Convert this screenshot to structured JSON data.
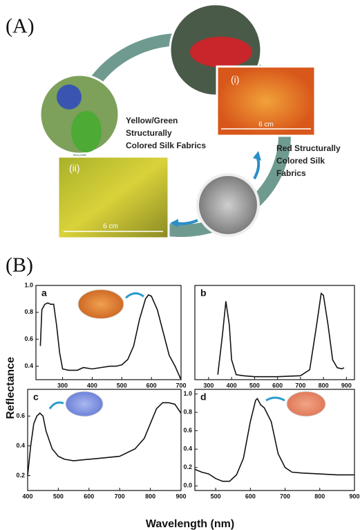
{
  "panel_a": {
    "label": "(A)",
    "fabric_i": "(i)",
    "fabric_ii": "(ii)",
    "scale_i": "6 cm",
    "scale_ii": "6 cm",
    "yellow_green_caption": [
      "Yellow/Green",
      "Structurally",
      "Colored Silk Fabrics"
    ],
    "red_caption": [
      "Red Structurally",
      "Colored Silk",
      "Fabrics"
    ]
  },
  "panel_b": {
    "label": "(B)",
    "y_label": "Reflectance",
    "x_label": "Wavelength (nm)"
  },
  "chart_data": [
    {
      "type": "line",
      "label": "a",
      "color": "#111111",
      "x": [
        225,
        230,
        240,
        250,
        260,
        270,
        280,
        290,
        300,
        320,
        350,
        370,
        400,
        430,
        460,
        480,
        500,
        520,
        540,
        560,
        580,
        590,
        600,
        620,
        640,
        660,
        680,
        690,
        700
      ],
      "values": [
        0.55,
        0.82,
        0.86,
        0.87,
        0.86,
        0.86,
        0.7,
        0.5,
        0.38,
        0.37,
        0.37,
        0.39,
        0.38,
        0.39,
        0.4,
        0.4,
        0.41,
        0.45,
        0.55,
        0.75,
        0.9,
        0.93,
        0.92,
        0.82,
        0.65,
        0.48,
        0.4,
        0.35,
        0.3
      ],
      "xlim": [
        210,
        700
      ],
      "ylim": [
        0.3,
        1.0
      ],
      "xticks": [
        300,
        400,
        500,
        600,
        700
      ],
      "yticks": [
        0.4,
        0.6,
        0.8,
        {
          "value": 1,
          "label": "1.0"
        }
      ]
    },
    {
      "type": "line",
      "label": "b",
      "color": "#111111",
      "x": [
        340,
        360,
        375,
        390,
        400,
        420,
        450,
        500,
        600,
        700,
        740,
        770,
        790,
        800,
        820,
        840,
        860,
        880,
        890
      ],
      "values": [
        0.1,
        0.5,
        0.84,
        0.6,
        0.25,
        0.1,
        0.09,
        0.08,
        0.08,
        0.09,
        0.15,
        0.6,
        0.92,
        0.9,
        0.6,
        0.25,
        0.17,
        0.16,
        0.17
      ],
      "xlim": [
        240,
        935
      ],
      "ylim": [
        0.05,
        1.0
      ],
      "xticks": [
        300,
        400,
        500,
        600,
        700,
        800,
        900
      ]
    },
    {
      "type": "line",
      "label": "c",
      "color": "#111111",
      "x": [
        400,
        410,
        420,
        430,
        440,
        450,
        460,
        480,
        500,
        520,
        550,
        600,
        650,
        700,
        750,
        780,
        800,
        820,
        840,
        860,
        880,
        900
      ],
      "values": [
        0.2,
        0.4,
        0.55,
        0.6,
        0.62,
        0.6,
        0.5,
        0.38,
        0.33,
        0.31,
        0.3,
        0.31,
        0.32,
        0.33,
        0.38,
        0.45,
        0.55,
        0.65,
        0.69,
        0.69,
        0.68,
        0.62
      ],
      "xlim": [
        400,
        900
      ],
      "ylim": [
        0.1,
        0.78
      ],
      "xticks": [
        400,
        500,
        600,
        700,
        800,
        900
      ],
      "yticks": [
        0.2,
        0.4,
        0.6
      ]
    },
    {
      "type": "line",
      "label": "d",
      "color": "#111111",
      "x": [
        440,
        460,
        480,
        500,
        520,
        540,
        560,
        580,
        600,
        615,
        620,
        630,
        640,
        660,
        680,
        700,
        720,
        750,
        800,
        850,
        900
      ],
      "values": [
        0.18,
        0.15,
        0.13,
        0.08,
        0.05,
        0.05,
        0.12,
        0.3,
        0.7,
        0.93,
        0.95,
        0.88,
        0.85,
        0.7,
        0.35,
        0.2,
        0.15,
        0.14,
        0.13,
        0.12,
        0.12
      ],
      "xlim": [
        440,
        900
      ],
      "ylim": [
        -0.05,
        1.05
      ],
      "xticks": [
        500,
        600,
        700,
        800,
        900
      ],
      "yticks": [
        {
          "value": 0,
          "label": "0.0"
        },
        0.2,
        0.4,
        0.6,
        0.8,
        {
          "value": 1,
          "label": "1.0"
        }
      ]
    }
  ]
}
